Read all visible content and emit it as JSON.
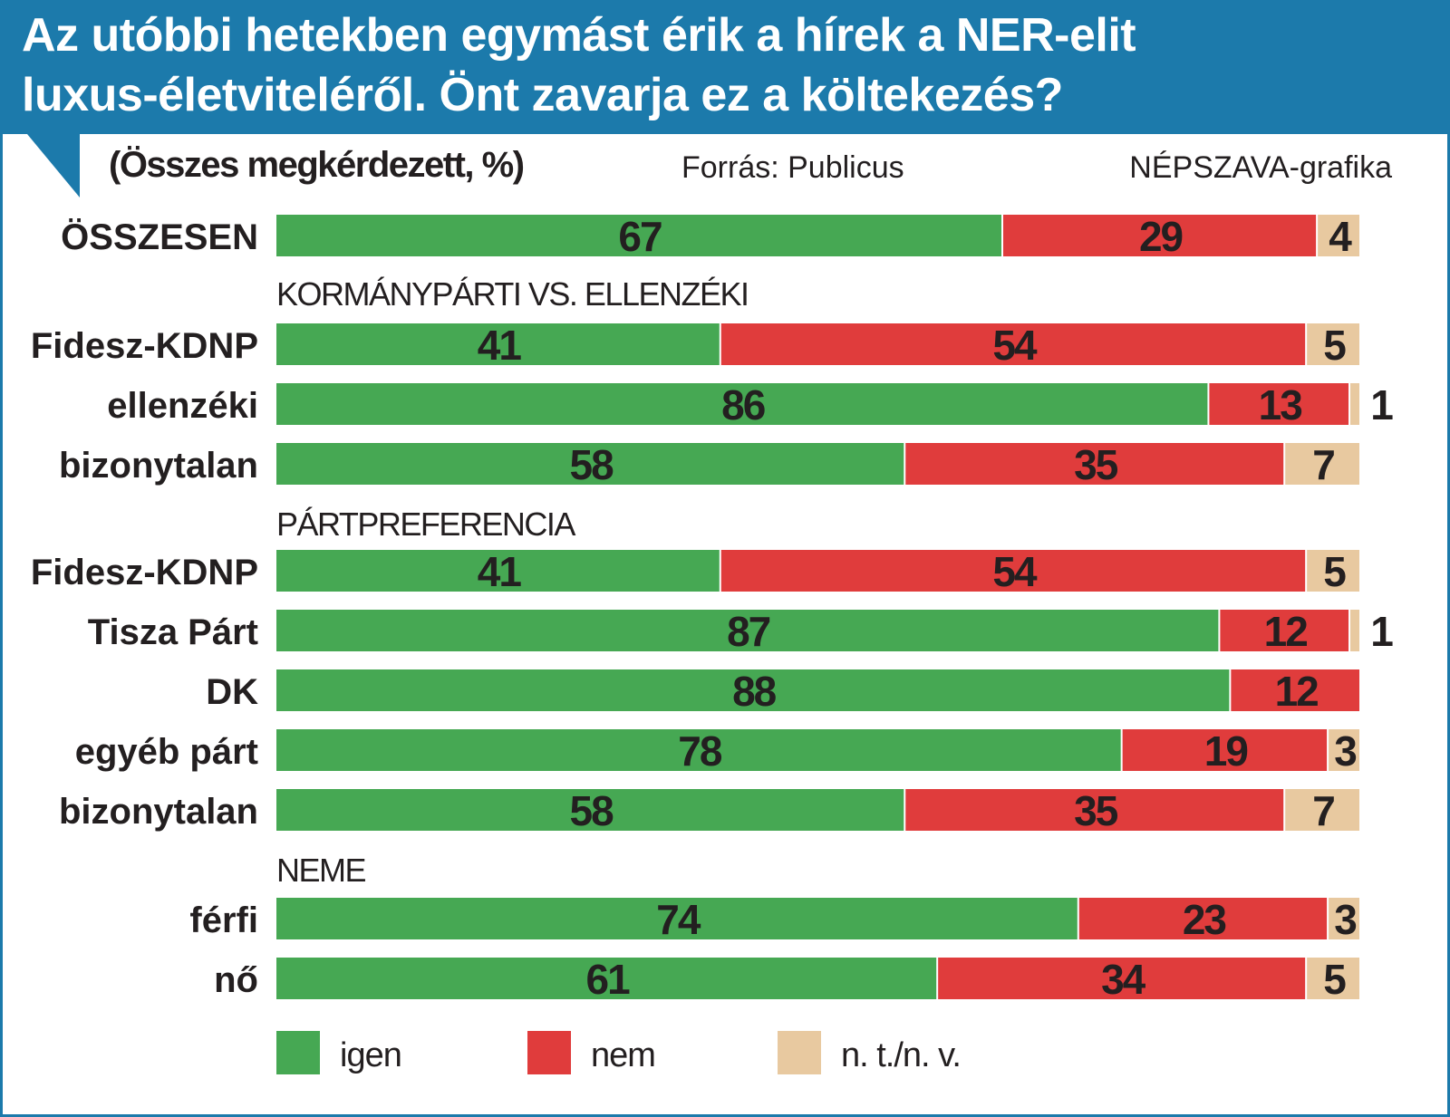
{
  "header": {
    "title_line1": "Az utóbbi hetekben egymást érik a hírek a NER-elit",
    "title_line2": "luxus-életviteléről. Önt zavarja ez a költekezés?",
    "subtitle": "(Összes megkérdezett, %)",
    "source": "Forrás: Publicus",
    "credit": "NÉPSZAVA-grafika"
  },
  "colors": {
    "header_blue": "#1c7aab",
    "igen": "#46a853",
    "nem": "#e03c3c",
    "ntnv": "#e8c9a0"
  },
  "chart_data": {
    "type": "bar",
    "orientation": "horizontal",
    "stacked": true,
    "title": "Az utóbbi hetekben egymást érik a hírek a NER-elit luxus-életviteléről. Önt zavarja ez a költekezés?",
    "subtitle": "(Összes megkérdezett, %)",
    "unit": "%",
    "xlim": [
      0,
      100
    ],
    "grid": false,
    "legend": {
      "placement": "bottom-left",
      "entries": [
        "igen",
        "nem",
        "n. t./n. v."
      ]
    },
    "series_names": [
      "igen",
      "nem",
      "n. t./n. v."
    ],
    "groups": [
      {
        "label": "",
        "rows": [
          {
            "label": "ÖSSZESEN",
            "values": [
              67,
              29,
              4
            ]
          }
        ]
      },
      {
        "label": "KORMÁNYPÁRTI VS. ELLENZÉKI",
        "rows": [
          {
            "label": "Fidesz-KDNP",
            "values": [
              41,
              54,
              5
            ]
          },
          {
            "label": "ellenzéki",
            "values": [
              86,
              13,
              1
            ]
          },
          {
            "label": "bizonytalan",
            "values": [
              58,
              35,
              7
            ]
          }
        ]
      },
      {
        "label": "PÁRTPREFERENCIA",
        "rows": [
          {
            "label": "Fidesz-KDNP",
            "values": [
              41,
              54,
              5
            ]
          },
          {
            "label": "Tisza Párt",
            "values": [
              87,
              12,
              1
            ]
          },
          {
            "label": "DK",
            "values": [
              88,
              12,
              0
            ]
          },
          {
            "label": "egyéb párt",
            "values": [
              78,
              19,
              3
            ]
          },
          {
            "label": "bizonytalan",
            "values": [
              58,
              35,
              7
            ]
          }
        ]
      },
      {
        "label": "NEME",
        "rows": [
          {
            "label": "férfi",
            "values": [
              74,
              23,
              3
            ]
          },
          {
            "label": "nő",
            "values": [
              61,
              34,
              5
            ]
          }
        ]
      }
    ]
  }
}
